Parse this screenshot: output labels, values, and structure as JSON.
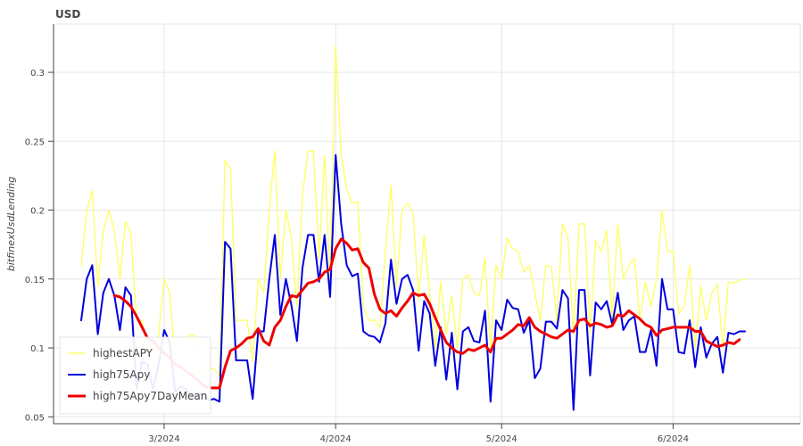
{
  "chart_data": {
    "type": "line",
    "title": "USD",
    "xlabel": "",
    "ylabel": "bitfinexUsdLending",
    "x_start": "2024-02-15",
    "x_ticks": [
      {
        "date": "2024-03-01",
        "label": "3/2024"
      },
      {
        "date": "2024-04-01",
        "label": "4/2024"
      },
      {
        "date": "2024-05-01",
        "label": "5/2024"
      },
      {
        "date": "2024-06-01",
        "label": "6/2024"
      }
    ],
    "xlim": [
      "2024-02-10",
      "2024-06-24"
    ],
    "ylim": [
      0.045,
      0.335
    ],
    "y_ticks": [
      0.05,
      0.1,
      0.15,
      0.2,
      0.25,
      0.3
    ],
    "y_tick_labels": [
      "0.05",
      "0.1",
      "0.15",
      "0.2",
      "0.25",
      "0.3"
    ],
    "grid": true,
    "legend_position": "bottom-left",
    "series": [
      {
        "name": "highestAPY",
        "color": "#ffff55",
        "width": 1.2,
        "values": [
          0.16,
          0.2,
          0.214,
          0.145,
          0.185,
          0.2,
          0.185,
          0.15,
          0.192,
          0.183,
          0.12,
          0.12,
          0.1,
          0.088,
          0.11,
          0.15,
          0.14,
          0.09,
          0.085,
          0.107,
          0.11,
          0.107,
          0.08,
          0.085,
          0.085,
          0.08,
          0.236,
          0.23,
          0.12,
          0.12,
          0.12,
          0.09,
          0.15,
          0.14,
          0.2,
          0.243,
          0.15,
          0.2,
          0.18,
          0.13,
          0.21,
          0.243,
          0.243,
          0.165,
          0.24,
          0.15,
          0.32,
          0.24,
          0.215,
          0.205,
          0.206,
          0.13,
          0.12,
          0.12,
          0.115,
          0.17,
          0.218,
          0.145,
          0.2,
          0.205,
          0.198,
          0.135,
          0.182,
          0.14,
          0.1,
          0.148,
          0.11,
          0.138,
          0.1,
          0.15,
          0.153,
          0.14,
          0.138,
          0.165,
          0.1,
          0.16,
          0.15,
          0.18,
          0.172,
          0.17,
          0.155,
          0.16,
          0.14,
          0.12,
          0.16,
          0.159,
          0.12,
          0.19,
          0.18,
          0.11,
          0.19,
          0.19,
          0.11,
          0.178,
          0.17,
          0.185,
          0.12,
          0.19,
          0.15,
          0.16,
          0.165,
          0.12,
          0.148,
          0.13,
          0.15,
          0.2,
          0.17,
          0.17,
          0.125,
          0.13,
          0.16,
          0.1,
          0.145,
          0.12,
          0.14,
          0.146,
          0.1,
          0.148,
          0.147,
          0.149,
          0.15
        ]
      },
      {
        "name": "high75Apy",
        "color": "#0000dd",
        "width": 2,
        "values": [
          0.12,
          0.15,
          0.16,
          0.11,
          0.14,
          0.15,
          0.138,
          0.113,
          0.144,
          0.138,
          0.07,
          0.09,
          0.088,
          0.07,
          0.088,
          0.113,
          0.104,
          0.068,
          0.072,
          0.07,
          0.064,
          0.067,
          0.066,
          0.062,
          0.063,
          0.061,
          0.177,
          0.172,
          0.091,
          0.091,
          0.091,
          0.063,
          0.112,
          0.112,
          0.15,
          0.182,
          0.124,
          0.15,
          0.131,
          0.105,
          0.158,
          0.182,
          0.182,
          0.148,
          0.182,
          0.137,
          0.24,
          0.19,
          0.16,
          0.152,
          0.154,
          0.112,
          0.109,
          0.108,
          0.104,
          0.118,
          0.164,
          0.132,
          0.15,
          0.153,
          0.142,
          0.098,
          0.134,
          0.125,
          0.087,
          0.115,
          0.077,
          0.111,
          0.07,
          0.112,
          0.115,
          0.105,
          0.104,
          0.127,
          0.061,
          0.12,
          0.113,
          0.135,
          0.129,
          0.128,
          0.111,
          0.12,
          0.078,
          0.085,
          0.119,
          0.119,
          0.114,
          0.142,
          0.136,
          0.055,
          0.142,
          0.142,
          0.08,
          0.133,
          0.128,
          0.134,
          0.117,
          0.14,
          0.113,
          0.12,
          0.123,
          0.097,
          0.097,
          0.113,
          0.087,
          0.15,
          0.128,
          0.128,
          0.097,
          0.096,
          0.12,
          0.086,
          0.115,
          0.093,
          0.103,
          0.108,
          0.082,
          0.111,
          0.11,
          0.112,
          0.112
        ]
      },
      {
        "name": "high75Apy7DayMean",
        "color": "#ee0000",
        "width": 3,
        "values": [
          null,
          null,
          null,
          null,
          null,
          null,
          0.138,
          0.137,
          0.134,
          0.13,
          0.123,
          0.115,
          0.107,
          0.105,
          0.1,
          0.096,
          0.093,
          0.088,
          0.086,
          0.083,
          0.08,
          0.077,
          0.073,
          0.071,
          0.071,
          0.071,
          0.086,
          0.098,
          0.1,
          0.103,
          0.107,
          0.108,
          0.114,
          0.105,
          0.102,
          0.115,
          0.12,
          0.13,
          0.138,
          0.137,
          0.142,
          0.147,
          0.148,
          0.15,
          0.155,
          0.157,
          0.172,
          0.179,
          0.176,
          0.171,
          0.172,
          0.162,
          0.158,
          0.139,
          0.128,
          0.125,
          0.127,
          0.123,
          0.129,
          0.134,
          0.14,
          0.138,
          0.139,
          0.132,
          0.122,
          0.113,
          0.104,
          0.1,
          0.097,
          0.096,
          0.099,
          0.098,
          0.1,
          0.102,
          0.097,
          0.107,
          0.107,
          0.11,
          0.113,
          0.117,
          0.116,
          0.122,
          0.115,
          0.112,
          0.11,
          0.108,
          0.107,
          0.11,
          0.113,
          0.112,
          0.12,
          0.121,
          0.116,
          0.118,
          0.117,
          0.115,
          0.116,
          0.124,
          0.123,
          0.127,
          0.124,
          0.121,
          0.117,
          0.115,
          0.109,
          0.113,
          0.114,
          0.115,
          0.115,
          0.115,
          0.115,
          0.112,
          0.112,
          0.105,
          0.103,
          0.101,
          0.102,
          0.104,
          0.103,
          0.106
        ]
      }
    ]
  }
}
